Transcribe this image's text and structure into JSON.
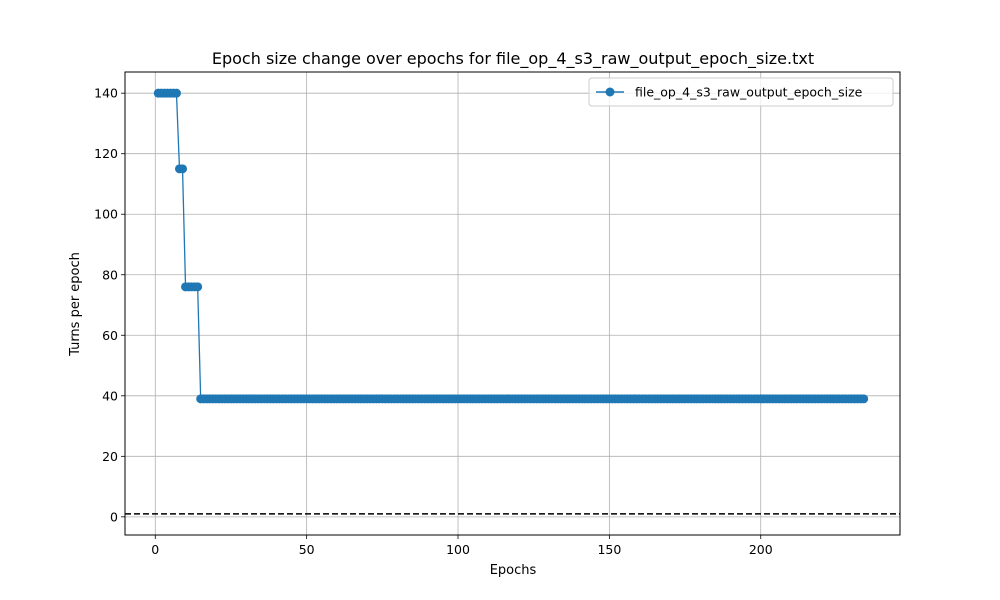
{
  "chart_data": {
    "type": "line",
    "title": "Epoch size change over epochs for file_op_4_s3_raw_output_epoch_size.txt",
    "xlabel": "Epochs",
    "ylabel": "Turns per epoch",
    "xlim": [
      -10,
      246
    ],
    "ylim": [
      -6,
      147
    ],
    "xticks": [
      0,
      50,
      100,
      150,
      200
    ],
    "yticks": [
      0,
      20,
      40,
      60,
      80,
      100,
      120,
      140
    ],
    "grid": true,
    "legend_position": "upper-right",
    "reference_line": {
      "y": 1,
      "style": "dashed",
      "color": "#000000"
    },
    "series": [
      {
        "name": "file_op_4_s3_raw_output_epoch_size",
        "color": "#1f77b4",
        "marker": "circle",
        "segments": [
          {
            "x_start": 1,
            "x_end": 7,
            "y": 140
          },
          {
            "x_start": 8,
            "x_end": 9,
            "y": 115
          },
          {
            "x_start": 10,
            "x_end": 14,
            "y": 76
          },
          {
            "x_start": 15,
            "x_end": 234,
            "y": 39
          }
        ]
      }
    ]
  },
  "colors": {
    "series": "#1f77b4",
    "grid": "#b0b0b0",
    "axis": "#000000"
  }
}
